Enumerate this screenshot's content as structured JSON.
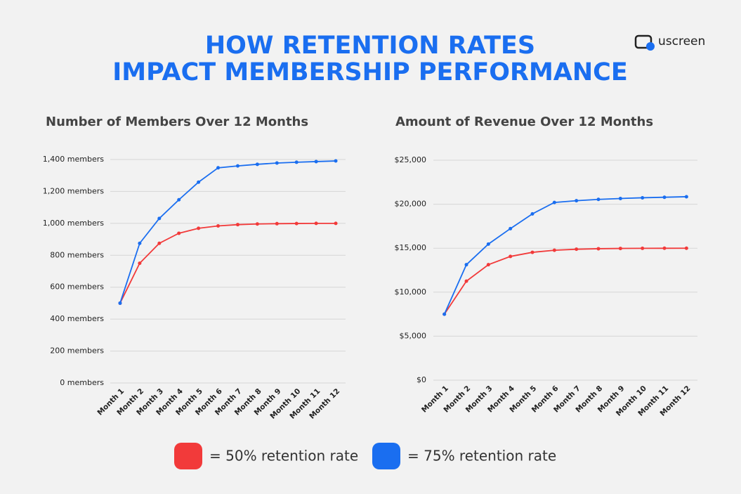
{
  "title": [
    "HOW RETENTION RATES",
    "IMPACT MEMBERSHIP PERFORMANCE"
  ],
  "logo": "uscreen",
  "chart_data": [
    {
      "type": "line",
      "title": "Number of Members Over 12 Months",
      "categories": [
        "Month 1",
        "Month 2",
        "Month 3",
        "Month 4",
        "Month 5",
        "Month 6",
        "Month 7",
        "Month 8",
        "Month 9",
        "Month 10",
        "Month 11",
        "Month 12"
      ],
      "series": [
        {
          "name": "= 50% retention rate",
          "color": "#f23a3a",
          "values": [
            500,
            750,
            875,
            938,
            969,
            984,
            992,
            996,
            998,
            999,
            1000,
            1000
          ]
        },
        {
          "name": "= 75% retention rate",
          "color": "#1a6ef0",
          "values": [
            500,
            875,
            1031,
            1148,
            1258,
            1348,
            1360,
            1370,
            1378,
            1383,
            1387,
            1391
          ]
        }
      ],
      "ylim": [
        0,
        1400
      ],
      "yticks": [
        {
          "value": 0,
          "label": "0 members"
        },
        {
          "value": 200,
          "label": "200 members"
        },
        {
          "value": 400,
          "label": "400 members"
        },
        {
          "value": 600,
          "label": "600 members"
        },
        {
          "value": 800,
          "label": "800 members"
        },
        {
          "value": 1000,
          "label": "1,000 members"
        },
        {
          "value": 1200,
          "label": "1,200 members"
        },
        {
          "value": 1400,
          "label": "1,400 members"
        }
      ],
      "grid": true
    },
    {
      "type": "line",
      "title": "Amount of Revenue Over 12 Months",
      "categories": [
        "Month 1",
        "Month 2",
        "Month 3",
        "Month 4",
        "Month 5",
        "Month 6",
        "Month 7",
        "Month 8",
        "Month 9",
        "Month 10",
        "Month 11",
        "Month 12"
      ],
      "series": [
        {
          "name": "= 50% retention rate",
          "color": "#f23a3a",
          "values": [
            7500,
            11250,
            13125,
            14063,
            14531,
            14766,
            14883,
            14941,
            14971,
            14985,
            14993,
            14996
          ]
        },
        {
          "name": "= 75% retention rate",
          "color": "#1a6ef0",
          "values": [
            7500,
            13125,
            15469,
            17227,
            18900,
            20200,
            20400,
            20550,
            20650,
            20730,
            20790,
            20850
          ]
        }
      ],
      "ylim": [
        0,
        25000
      ],
      "yticks": [
        {
          "value": 0,
          "label": "$0"
        },
        {
          "value": 5000,
          "label": "$5,000"
        },
        {
          "value": 10000,
          "label": "$10,000"
        },
        {
          "value": 15000,
          "label": "$15,000"
        },
        {
          "value": 20000,
          "label": "$20,000"
        },
        {
          "value": 25000,
          "label": "$25,000"
        }
      ],
      "grid": true
    }
  ]
}
